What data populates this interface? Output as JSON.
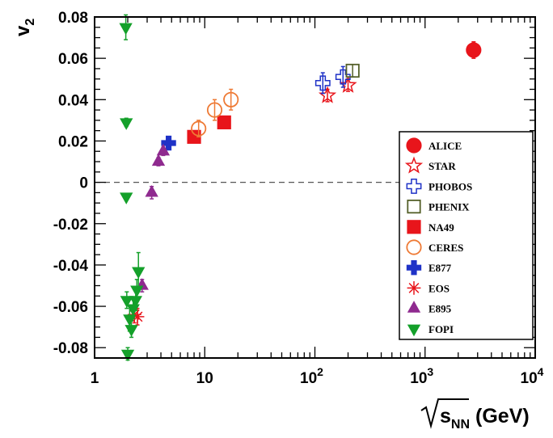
{
  "chart_data": {
    "type": "scatter",
    "title": "",
    "ylabel": {
      "main": "v",
      "sub": "2"
    },
    "xlabel": {
      "main": "s",
      "sub": "NN",
      "unit": "(GeV)"
    },
    "xscale": "log",
    "xlim": [
      1,
      10000
    ],
    "ylim": [
      -0.085,
      0.08
    ],
    "x_ticks": [
      {
        "value": 1,
        "label": "1"
      },
      {
        "value": 10,
        "label": "10"
      },
      {
        "value": 100,
        "base": "10",
        "exp": "2"
      },
      {
        "value": 1000,
        "base": "10",
        "exp": "3"
      },
      {
        "value": 10000,
        "base": "10",
        "exp": "4"
      }
    ],
    "y_ticks": [
      {
        "value": 0.08,
        "label": "0.08"
      },
      {
        "value": 0.06,
        "label": "0.06"
      },
      {
        "value": 0.04,
        "label": "0.04"
      },
      {
        "value": 0.02,
        "label": "0.02"
      },
      {
        "value": 0,
        "label": "0"
      },
      {
        "value": -0.02,
        "label": "-0.02"
      },
      {
        "value": -0.04,
        "label": "-0.04"
      },
      {
        "value": -0.06,
        "label": "-0.06"
      },
      {
        "value": -0.08,
        "label": "-0.08"
      }
    ],
    "zero_line": true,
    "legend_position": "right",
    "series": [
      {
        "name": "ALICE",
        "marker": "circle",
        "filled": true,
        "color": "#e8151b",
        "points": [
          {
            "x": 2760,
            "y": 0.064,
            "err": 0.004
          }
        ]
      },
      {
        "name": "STAR",
        "marker": "star",
        "filled": false,
        "color": "#e8151b",
        "points": [
          {
            "x": 130,
            "y": 0.042,
            "err": 0.003
          },
          {
            "x": 200,
            "y": 0.047,
            "err": 0.003
          }
        ]
      },
      {
        "name": "PHOBOS",
        "marker": "cross",
        "filled": false,
        "color": "#1f32c7",
        "points": [
          {
            "x": 118,
            "y": 0.048,
            "err": 0.005
          },
          {
            "x": 180,
            "y": 0.051,
            "err": 0.005
          }
        ]
      },
      {
        "name": "PHENIX",
        "marker": "square",
        "filled": false,
        "color": "#55602a",
        "points": [
          {
            "x": 220,
            "y": 0.054,
            "err": 0.003
          }
        ]
      },
      {
        "name": "NA49",
        "marker": "square",
        "filled": true,
        "color": "#e8151b",
        "points": [
          {
            "x": 8,
            "y": 0.022,
            "err": 0.0015
          },
          {
            "x": 15,
            "y": 0.029,
            "err": 0.0015
          }
        ]
      },
      {
        "name": "CERES",
        "marker": "circle",
        "filled": false,
        "color": "#ee7a35",
        "points": [
          {
            "x": 8.8,
            "y": 0.026,
            "err": 0.004
          },
          {
            "x": 12.3,
            "y": 0.035,
            "err": 0.005
          },
          {
            "x": 17.3,
            "y": 0.04,
            "err": 0.005
          }
        ]
      },
      {
        "name": "E877",
        "marker": "cross",
        "filled": true,
        "color": "#1f32c7",
        "points": [
          {
            "x": 4.7,
            "y": 0.019,
            "err": 0.0015
          }
        ]
      },
      {
        "name": "EOS",
        "marker": "asterisk",
        "filled": false,
        "color": "#e8151b",
        "points": [
          {
            "x": 2.3,
            "y": -0.064,
            "err": 0.004
          },
          {
            "x": 2.45,
            "y": -0.065,
            "err": 0.004
          }
        ]
      },
      {
        "name": "E895",
        "marker": "triangle-up",
        "filled": true,
        "color": "#8f2a8f",
        "points": [
          {
            "x": 2.7,
            "y": -0.05,
            "err": 0.003
          },
          {
            "x": 3.3,
            "y": -0.005,
            "err": 0.003
          },
          {
            "x": 3.8,
            "y": 0.01,
            "err": 0.002
          },
          {
            "x": 4.2,
            "y": 0.015,
            "err": 0.002
          }
        ]
      },
      {
        "name": "FOPI",
        "marker": "triangle-down",
        "filled": true,
        "color": "#14a02a",
        "points": [
          {
            "x": 1.92,
            "y": 0.075,
            "err": 0.006
          },
          {
            "x": 1.94,
            "y": 0.029,
            "err": 0.002
          },
          {
            "x": 1.94,
            "y": -0.007,
            "err": 0.001
          },
          {
            "x": 1.96,
            "y": -0.057,
            "err": 0.004
          },
          {
            "x": 2.0,
            "y": -0.083,
            "err": 0.003
          },
          {
            "x": 2.08,
            "y": -0.066,
            "err": 0.006
          },
          {
            "x": 2.16,
            "y": -0.071,
            "err": 0.004
          },
          {
            "x": 2.24,
            "y": -0.061,
            "err": 0.005
          },
          {
            "x": 2.36,
            "y": -0.057,
            "err": 0.005
          },
          {
            "x": 2.42,
            "y": -0.052,
            "err": 0.005
          },
          {
            "x": 2.5,
            "y": -0.043,
            "err": 0.009
          }
        ]
      }
    ]
  }
}
